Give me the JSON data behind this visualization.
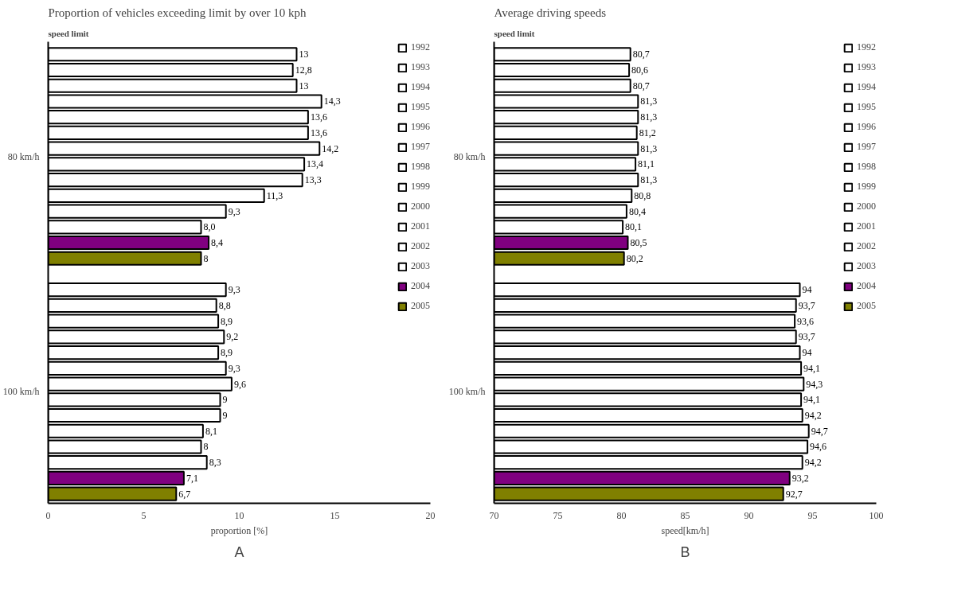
{
  "chart_data": [
    {
      "type": "bar",
      "orientation": "horizontal",
      "title": "Proportion of vehicles exceeding limit by over 10 kph",
      "xlabel": "proportion [%]",
      "ylabel": "speed limit",
      "categories": [
        "80 km/h",
        "100 km/h"
      ],
      "xlim": [
        0,
        20
      ],
      "xticks": [
        0,
        5,
        10,
        15,
        20
      ],
      "legend": "right",
      "annotations": [
        "A"
      ],
      "series": [
        {
          "name": "1992",
          "color": "#ffffff",
          "values": [
            13,
            9.3
          ],
          "value_labels": [
            "13",
            "9,3"
          ]
        },
        {
          "name": "1993",
          "color": "#ffffff",
          "values": [
            12.8,
            8.8
          ],
          "value_labels": [
            "12,8",
            "8,8"
          ]
        },
        {
          "name": "1994",
          "color": "#ffffff",
          "values": [
            13,
            8.9
          ],
          "value_labels": [
            "13",
            "8,9"
          ]
        },
        {
          "name": "1995",
          "color": "#ffffff",
          "values": [
            14.3,
            9.2
          ],
          "value_labels": [
            "14,3",
            "9,2"
          ]
        },
        {
          "name": "1996",
          "color": "#ffffff",
          "values": [
            13.6,
            8.9
          ],
          "value_labels": [
            "13,6",
            "8,9"
          ]
        },
        {
          "name": "1997",
          "color": "#ffffff",
          "values": [
            13.6,
            9.3
          ],
          "value_labels": [
            "13,6",
            "9,3"
          ]
        },
        {
          "name": "1998",
          "color": "#ffffff",
          "values": [
            14.2,
            9.6
          ],
          "value_labels": [
            "14,2",
            "9,6"
          ]
        },
        {
          "name": "1999",
          "color": "#ffffff",
          "values": [
            13.4,
            9
          ],
          "value_labels": [
            "13,4",
            "9"
          ]
        },
        {
          "name": "2000",
          "color": "#ffffff",
          "values": [
            13.3,
            9
          ],
          "value_labels": [
            "13,3",
            "9"
          ]
        },
        {
          "name": "2001",
          "color": "#ffffff",
          "values": [
            11.3,
            8.1
          ],
          "value_labels": [
            "11,3",
            "8,1"
          ]
        },
        {
          "name": "2002",
          "color": "#ffffff",
          "values": [
            9.3,
            8
          ],
          "value_labels": [
            "9,3",
            "8"
          ]
        },
        {
          "name": "2003",
          "color": "#ffffff",
          "values": [
            8.0,
            8.3
          ],
          "value_labels": [
            "8,0",
            "8,3"
          ]
        },
        {
          "name": "2004",
          "color": "#800080",
          "values": [
            8.4,
            7.1
          ],
          "value_labels": [
            "8,4",
            "7,1"
          ]
        },
        {
          "name": "2005",
          "color": "#808000",
          "values": [
            8,
            6.7
          ],
          "value_labels": [
            "8",
            "6,7"
          ]
        }
      ]
    },
    {
      "type": "bar",
      "orientation": "horizontal",
      "title": "Average  driving speeds",
      "xlabel": "speed[km/h]",
      "ylabel": "speed limit",
      "categories": [
        "80 km/h",
        "100 km/h"
      ],
      "xlim": [
        70,
        100
      ],
      "xticks": [
        70,
        75,
        80,
        85,
        90,
        95,
        100
      ],
      "legend": "right",
      "annotations": [
        "B"
      ],
      "series": [
        {
          "name": "1992",
          "color": "#ffffff",
          "values": [
            80.7,
            94
          ],
          "value_labels": [
            "80,7",
            "94"
          ]
        },
        {
          "name": "1993",
          "color": "#ffffff",
          "values": [
            80.6,
            93.7
          ],
          "value_labels": [
            "80,6",
            "93,7"
          ]
        },
        {
          "name": "1994",
          "color": "#ffffff",
          "values": [
            80.7,
            93.6
          ],
          "value_labels": [
            "80,7",
            "93,6"
          ]
        },
        {
          "name": "1995",
          "color": "#ffffff",
          "values": [
            81.3,
            93.7
          ],
          "value_labels": [
            "81,3",
            "93,7"
          ]
        },
        {
          "name": "1996",
          "color": "#ffffff",
          "values": [
            81.3,
            94
          ],
          "value_labels": [
            "81,3",
            "94"
          ]
        },
        {
          "name": "1997",
          "color": "#ffffff",
          "values": [
            81.2,
            94.1
          ],
          "value_labels": [
            "81,2",
            "94,1"
          ]
        },
        {
          "name": "1998",
          "color": "#ffffff",
          "values": [
            81.3,
            94.3
          ],
          "value_labels": [
            "81,3",
            "94,3"
          ]
        },
        {
          "name": "1999",
          "color": "#ffffff",
          "values": [
            81.1,
            94.1
          ],
          "value_labels": [
            "81,1",
            "94,1"
          ]
        },
        {
          "name": "2000",
          "color": "#ffffff",
          "values": [
            81.3,
            94.2
          ],
          "value_labels": [
            "81,3",
            "94,2"
          ]
        },
        {
          "name": "2001",
          "color": "#ffffff",
          "values": [
            80.8,
            94.7
          ],
          "value_labels": [
            "80,8",
            "94,7"
          ]
        },
        {
          "name": "2002",
          "color": "#ffffff",
          "values": [
            80.4,
            94.6
          ],
          "value_labels": [
            "80,4",
            "94,6"
          ]
        },
        {
          "name": "2003",
          "color": "#ffffff",
          "values": [
            80.1,
            94.2
          ],
          "value_labels": [
            "80,1",
            "94,2"
          ]
        },
        {
          "name": "2004",
          "color": "#800080",
          "values": [
            80.5,
            93.2
          ],
          "value_labels": [
            "80,5",
            "93,2"
          ]
        },
        {
          "name": "2005",
          "color": "#808000",
          "values": [
            80.2,
            92.7
          ],
          "value_labels": [
            "80,2",
            "92,7"
          ]
        }
      ]
    }
  ]
}
